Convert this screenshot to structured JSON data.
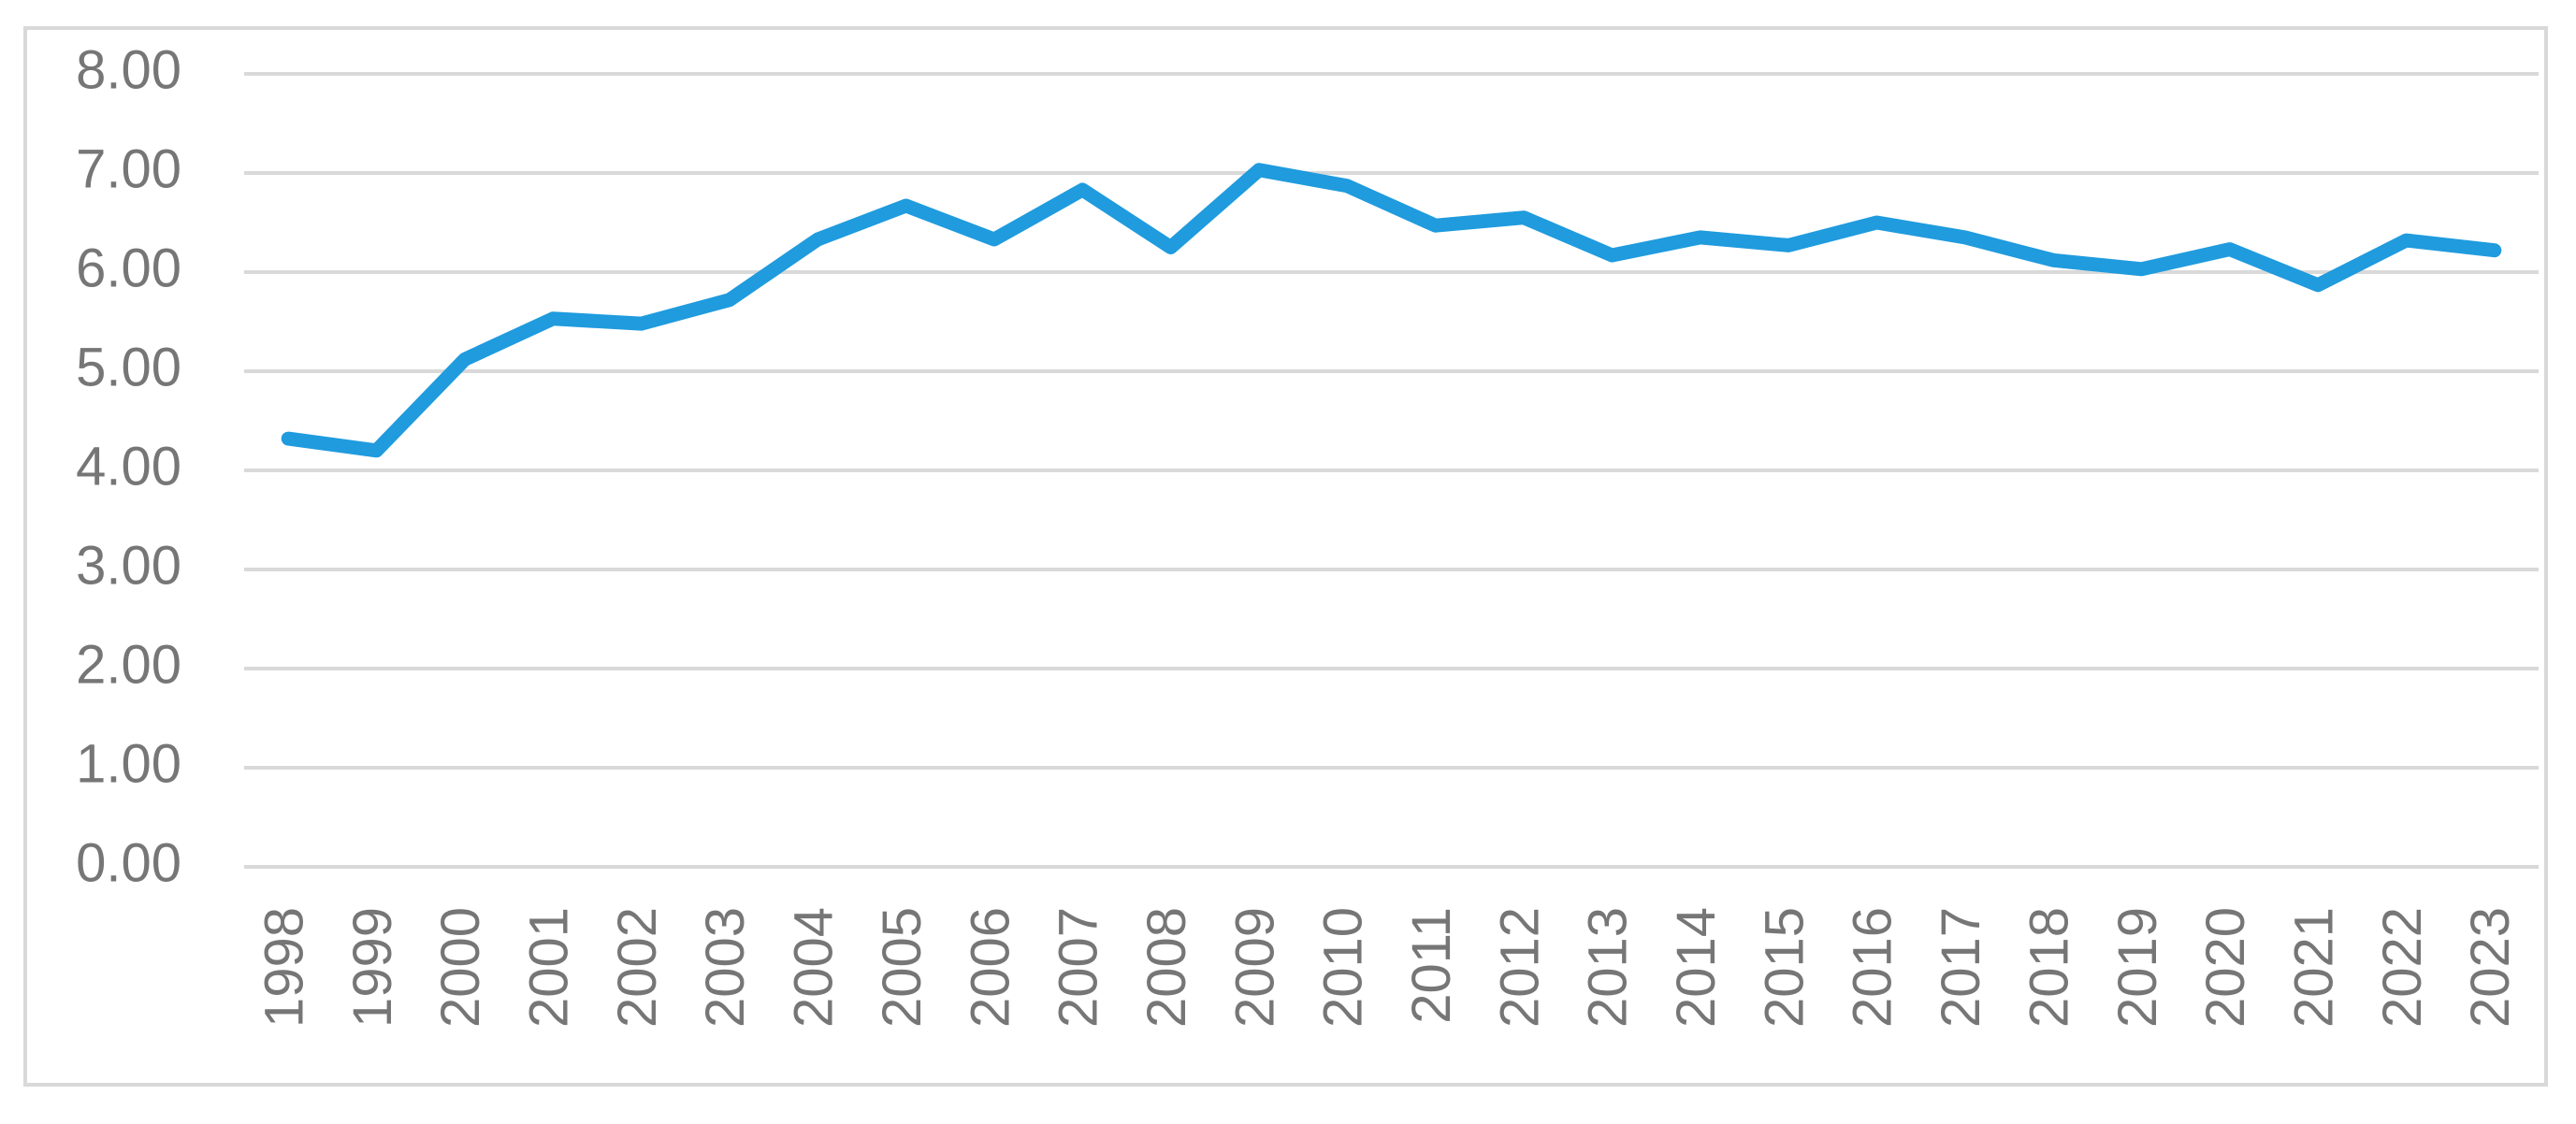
{
  "chart_data": {
    "type": "line",
    "categories": [
      "1998",
      "1999",
      "2000",
      "2001",
      "2002",
      "2003",
      "2004",
      "2005",
      "2006",
      "2007",
      "2008",
      "2009",
      "2010",
      "2011",
      "2012",
      "2013",
      "2014",
      "2015",
      "2016",
      "2017",
      "2018",
      "2019",
      "2020",
      "2021",
      "2022",
      "2023"
    ],
    "values": [
      4.32,
      4.2,
      5.12,
      5.53,
      5.48,
      5.72,
      6.33,
      6.67,
      6.33,
      6.83,
      6.25,
      7.03,
      6.87,
      6.47,
      6.55,
      6.17,
      6.35,
      6.27,
      6.5,
      6.35,
      6.12,
      6.03,
      6.23,
      5.87,
      6.32,
      6.22
    ],
    "color": "#1f9bde",
    "ylim": [
      0,
      8
    ],
    "yticks": [
      {
        "value": 0,
        "label": "0.00"
      },
      {
        "value": 1,
        "label": "1.00"
      },
      {
        "value": 2,
        "label": "2.00"
      },
      {
        "value": 3,
        "label": "3.00"
      },
      {
        "value": 4,
        "label": "4.00"
      },
      {
        "value": 5,
        "label": "5.00"
      },
      {
        "value": 6,
        "label": "6.00"
      },
      {
        "value": 7,
        "label": "7.00"
      },
      {
        "value": 8,
        "label": "8.00"
      }
    ],
    "grid": true
  }
}
